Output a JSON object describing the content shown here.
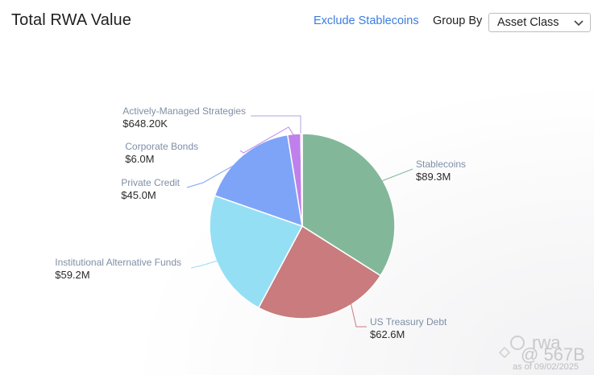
{
  "header": {
    "title": "Total RWA Value",
    "exclude_label": "Exclude Stablecoins",
    "group_by_label": "Group By",
    "group_by_value": "Asset Class"
  },
  "chart_data": {
    "type": "pie",
    "title": "Total RWA Value",
    "unit": "USD",
    "slices": [
      {
        "name": "Stablecoins",
        "value": 89.3,
        "label": "$89.3M",
        "color": "#82b899"
      },
      {
        "name": "US Treasury Debt",
        "value": 62.6,
        "label": "$62.6M",
        "color": "#c97b7d"
      },
      {
        "name": "Institutional Alternative Funds",
        "value": 59.2,
        "label": "$59.2M",
        "color": "#95dff5"
      },
      {
        "name": "Private Credit",
        "value": 45.0,
        "label": "$45.0M",
        "color": "#7ea4f7"
      },
      {
        "name": "Corporate Bonds",
        "value": 6.0,
        "label": "$6.0M",
        "color": "#bf80ec"
      },
      {
        "name": "Actively-Managed Strategies",
        "value": 0.6482,
        "label": "$648.20K",
        "color": "#b2a3df"
      }
    ]
  },
  "watermark": {
    "brand": "rwa",
    "handle": "@ 567B",
    "date": "as of 09/02/2025"
  }
}
